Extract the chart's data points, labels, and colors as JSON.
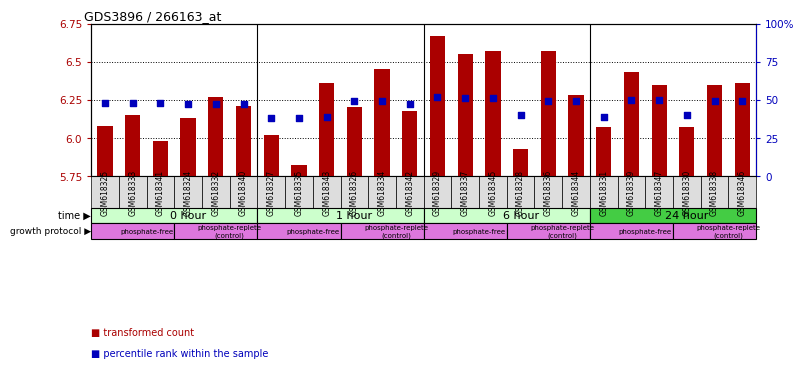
{
  "title": "GDS3896 / 266163_at",
  "samples": [
    "GSM618325",
    "GSM618333",
    "GSM618341",
    "GSM618324",
    "GSM618332",
    "GSM618340",
    "GSM618327",
    "GSM618335",
    "GSM618343",
    "GSM618326",
    "GSM618334",
    "GSM618342",
    "GSM618329",
    "GSM618337",
    "GSM618345",
    "GSM618328",
    "GSM618336",
    "GSM618344",
    "GSM618331",
    "GSM618339",
    "GSM618347",
    "GSM618330",
    "GSM618338",
    "GSM618346"
  ],
  "bar_values": [
    6.08,
    6.15,
    5.98,
    6.13,
    6.27,
    6.21,
    6.02,
    5.82,
    6.36,
    6.2,
    6.45,
    6.18,
    6.67,
    6.55,
    6.57,
    5.93,
    6.57,
    6.28,
    6.07,
    6.43,
    6.35,
    6.07,
    6.35,
    6.36
  ],
  "percentile_values": [
    48,
    48,
    48,
    47,
    47,
    47,
    38,
    38,
    39,
    49,
    49,
    47,
    52,
    51,
    51,
    40,
    49,
    49,
    39,
    50,
    50,
    40,
    49,
    49
  ],
  "ylim_left": [
    5.75,
    6.75
  ],
  "ylim_right": [
    0,
    100
  ],
  "yticks_left": [
    5.75,
    6.0,
    6.25,
    6.5,
    6.75
  ],
  "yticks_right": [
    0,
    25,
    50,
    75,
    100
  ],
  "ytick_labels_right": [
    "0",
    "25",
    "50",
    "75",
    "100%"
  ],
  "bar_color": "#aa0000",
  "percentile_color": "#0000bb",
  "time_groups": [
    {
      "label": "0 hour",
      "start": 0,
      "end": 6,
      "color": "#ccffcc"
    },
    {
      "label": "1 hour",
      "start": 6,
      "end": 12,
      "color": "#ccffcc"
    },
    {
      "label": "6 hour",
      "start": 12,
      "end": 18,
      "color": "#ccffcc"
    },
    {
      "label": "24 hour",
      "start": 18,
      "end": 24,
      "color": "#44cc44"
    }
  ],
  "protocol_groups": [
    {
      "label": "phosphate-free",
      "start": 0,
      "end": 3
    },
    {
      "label": "phosphate-replete\n(control)",
      "start": 3,
      "end": 6
    },
    {
      "label": "phosphate-free",
      "start": 6,
      "end": 9
    },
    {
      "label": "phosphate-replete\n(control)",
      "start": 9,
      "end": 12
    },
    {
      "label": "phosphate-free",
      "start": 12,
      "end": 15
    },
    {
      "label": "phosphate-replete\n(control)",
      "start": 15,
      "end": 18
    },
    {
      "label": "phosphate-free",
      "start": 18,
      "end": 21
    },
    {
      "label": "phosphate-replete\n(control)",
      "start": 21,
      "end": 24
    }
  ],
  "protocol_color": "#dd77dd",
  "xticklabel_bg": "#dddddd",
  "grid_dotted_color": "#000000",
  "separator_color": "#000000"
}
